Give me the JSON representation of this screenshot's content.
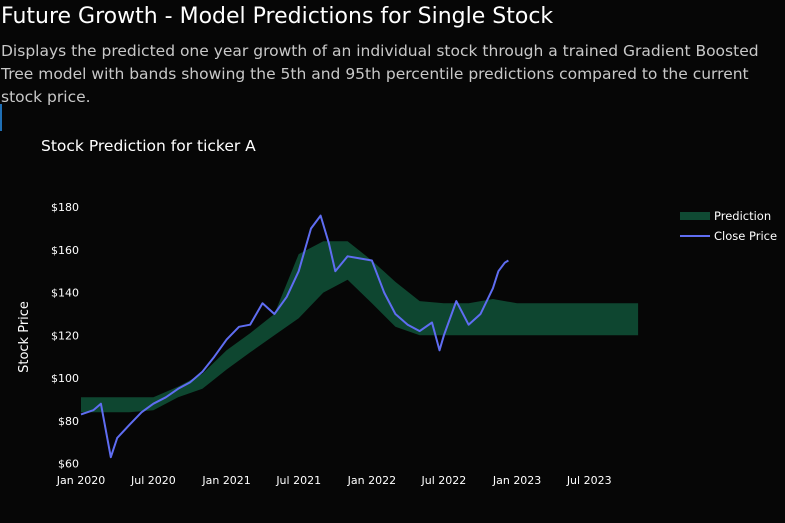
{
  "page": {
    "title": "Future Growth - Model Predictions for Single Stock",
    "description": "Displays the predicted one year growth of an individual stock through a trained Gradient Boosted Tree model with bands showing the 5th and 95th percentile predictions compared to the current stock price."
  },
  "colors": {
    "background": "#060606",
    "prediction_band": "#0f4a33",
    "close_price": "#5f6df2",
    "accent": "#1f6fb5"
  },
  "chart_data": {
    "type": "area",
    "title": "Stock Prediction for ticker A",
    "xlabel": "",
    "ylabel": "Stock Price",
    "xlim": [
      "2020-01-01",
      "2023-12-31"
    ],
    "ylim": [
      57,
      188
    ],
    "x_ticks": [
      {
        "date": "2020-01-01",
        "label": "Jan 2020"
      },
      {
        "date": "2020-07-01",
        "label": "Jul 2020"
      },
      {
        "date": "2021-01-01",
        "label": "Jan 2021"
      },
      {
        "date": "2021-07-01",
        "label": "Jul 2021"
      },
      {
        "date": "2022-01-01",
        "label": "Jan 2022"
      },
      {
        "date": "2022-07-01",
        "label": "Jul 2022"
      },
      {
        "date": "2023-01-01",
        "label": "Jan 2023"
      },
      {
        "date": "2023-07-01",
        "label": "Jul 2023"
      }
    ],
    "y_ticks": [
      {
        "value": 60,
        "label": "$60"
      },
      {
        "value": 80,
        "label": "$80"
      },
      {
        "value": 100,
        "label": "$100"
      },
      {
        "value": 120,
        "label": "$120"
      },
      {
        "value": 140,
        "label": "$140"
      },
      {
        "value": 160,
        "label": "$160"
      },
      {
        "value": 180,
        "label": "$180"
      }
    ],
    "legend": {
      "position": "top-right"
    },
    "grid": false,
    "series": [
      {
        "name": "Prediction",
        "kind": "band",
        "color": "#0f4a33",
        "x": [
          "2020-01-01",
          "2020-03-01",
          "2020-05-01",
          "2020-07-01",
          "2020-09-01",
          "2020-11-01",
          "2021-01-01",
          "2021-03-01",
          "2021-05-01",
          "2021-07-01",
          "2021-09-01",
          "2021-11-01",
          "2022-01-01",
          "2022-03-01",
          "2022-05-01",
          "2022-07-01",
          "2022-09-01",
          "2022-11-01",
          "2023-01-01",
          "2023-03-01",
          "2023-05-01",
          "2023-07-01",
          "2023-09-01",
          "2023-11-01"
        ],
        "lower": [
          84,
          84,
          84,
          85,
          91,
          95,
          104,
          112,
          120,
          128,
          140,
          146,
          135,
          124,
          120,
          120,
          120,
          120,
          120,
          120,
          120,
          120,
          120,
          120
        ],
        "upper": [
          91,
          91,
          91,
          91,
          96,
          102,
          113,
          121,
          130,
          158,
          164,
          164,
          155,
          145,
          136,
          135,
          135,
          137,
          135,
          135,
          135,
          135,
          135,
          135
        ]
      },
      {
        "name": "Close Price",
        "kind": "line",
        "color": "#5f6df2",
        "x": [
          "2020-01-01",
          "2020-02-01",
          "2020-02-20",
          "2020-03-16",
          "2020-04-01",
          "2020-05-01",
          "2020-06-01",
          "2020-07-01",
          "2020-08-01",
          "2020-09-01",
          "2020-10-01",
          "2020-11-01",
          "2020-12-01",
          "2021-01-01",
          "2021-02-01",
          "2021-03-01",
          "2021-04-01",
          "2021-05-01",
          "2021-06-01",
          "2021-07-01",
          "2021-08-01",
          "2021-08-25",
          "2021-09-15",
          "2021-10-01",
          "2021-11-01",
          "2021-12-01",
          "2022-01-01",
          "2022-02-01",
          "2022-03-01",
          "2022-04-01",
          "2022-05-01",
          "2022-06-01",
          "2022-06-20",
          "2022-07-01",
          "2022-08-01",
          "2022-09-01",
          "2022-10-01",
          "2022-11-01",
          "2022-11-15",
          "2022-12-01",
          "2022-12-10"
        ],
        "y": [
          83,
          85,
          88,
          63,
          72,
          78,
          84,
          88,
          91,
          95,
          98,
          103,
          110,
          118,
          124,
          125,
          135,
          130,
          138,
          150,
          170,
          176,
          163,
          150,
          157,
          156,
          155,
          140,
          130,
          125,
          122,
          126,
          113,
          120,
          136,
          125,
          130,
          142,
          150,
          154,
          155
        ]
      }
    ]
  }
}
